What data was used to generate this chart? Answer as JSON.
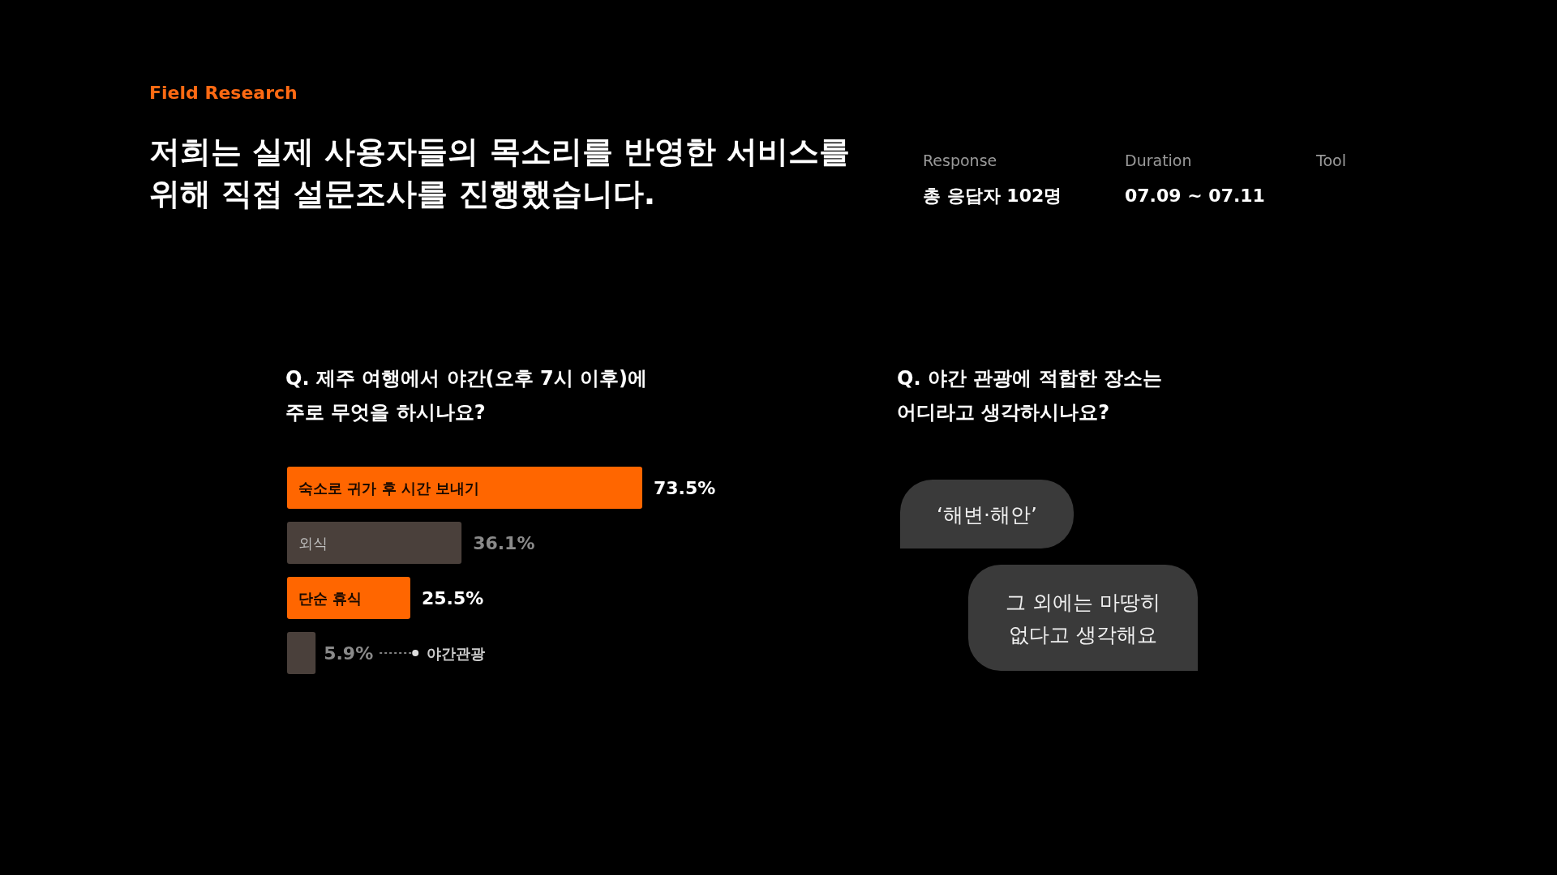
{
  "chart_data": [
    {
      "type": "other",
      "title": "Field Research",
      "subtitle": "저희는 실제 사용자들의 목소리를 반영한 서비스를\n위해 직접 설문조사를 진행했습니다.",
      "annotations": [
        "Response",
        "총 응답자 102명",
        "Duration",
        "07.09 ~ 07.11",
        "Tool"
      ]
    },
    {
      "type": "bar",
      "orientation": "horizontal",
      "title": "Q. 제주 여행에서 야간(오후 7시 이후)에\n주로 무엇을 하시나요?",
      "categories": [
        "숙소로 귀가 후 시간 보내기",
        "외식",
        "단순 휴식",
        "야간관광"
      ],
      "values": [
        73.5,
        36.1,
        25.5,
        5.9
      ],
      "colors": [
        "#ff6600",
        "#4a403b",
        "#ff6600",
        "#4a403b"
      ],
      "value_labels": [
        "73.5%",
        "36.1%",
        "25.5%",
        "5.9%"
      ]
    },
    {
      "type": "other",
      "title": "Q. 야간 관광에 적합한 장소는\n어디라고 생각하시나요?",
      "annotations": [
        "‘해변·해안’",
        "그 외에는 마땅히\n없다고 생각해요"
      ]
    }
  ]
}
